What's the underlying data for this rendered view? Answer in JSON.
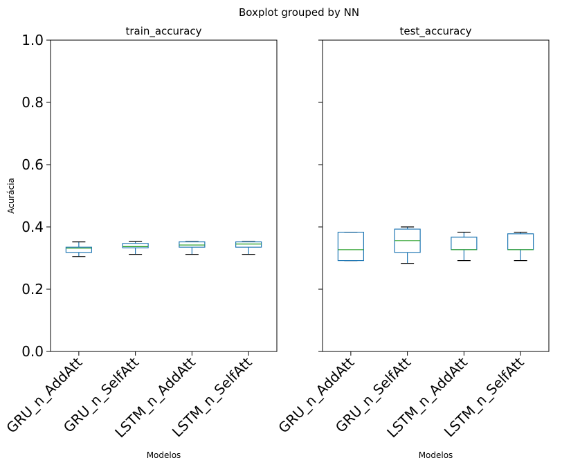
{
  "chart_data": {
    "type": "boxplot",
    "suptitle": "Boxplot grouped by NN",
    "ylabel": "Acurácia",
    "ylim": [
      0,
      1
    ],
    "yticks": [
      "0.0",
      "0.2",
      "0.4",
      "0.6",
      "0.8",
      "1.0"
    ],
    "categories": [
      "GRU_n_AddAtt",
      "GRU_n_SelfAtt",
      "LSTM_n_AddAtt",
      "LSTM_n_SelfAtt"
    ],
    "colors": {
      "box": "#1f77b4",
      "median": "#2ca02c",
      "whisker_cap": "#000000"
    },
    "panels": [
      {
        "title": "train_accuracy",
        "xlabel": "Modelos",
        "boxes": [
          {
            "category": "GRU_n_AddAtt",
            "whislo": 0.305,
            "q1": 0.318,
            "med": 0.332,
            "q3": 0.335,
            "whishi": 0.352
          },
          {
            "category": "GRU_n_SelfAtt",
            "whislo": 0.312,
            "q1": 0.333,
            "med": 0.337,
            "q3": 0.347,
            "whishi": 0.353
          },
          {
            "category": "LSTM_n_AddAtt",
            "whislo": 0.312,
            "q1": 0.335,
            "med": 0.342,
            "q3": 0.352,
            "whishi": 0.353
          },
          {
            "category": "LSTM_n_SelfAtt",
            "whislo": 0.312,
            "q1": 0.335,
            "med": 0.345,
            "q3": 0.352,
            "whishi": 0.353
          }
        ]
      },
      {
        "title": "test_accuracy",
        "xlabel": "Modelos",
        "boxes": [
          {
            "category": "GRU_n_AddAtt",
            "whislo": 0.292,
            "q1": 0.292,
            "med": 0.327,
            "q3": 0.383,
            "whishi": 0.383
          },
          {
            "category": "GRU_n_SelfAtt",
            "whislo": 0.283,
            "q1": 0.318,
            "med": 0.356,
            "q3": 0.393,
            "whishi": 0.4
          },
          {
            "category": "LSTM_n_AddAtt",
            "whislo": 0.292,
            "q1": 0.327,
            "med": 0.327,
            "q3": 0.367,
            "whishi": 0.383
          },
          {
            "category": "LSTM_n_SelfAtt",
            "whislo": 0.292,
            "q1": 0.327,
            "med": 0.327,
            "q3": 0.378,
            "whishi": 0.383
          }
        ]
      }
    ]
  }
}
